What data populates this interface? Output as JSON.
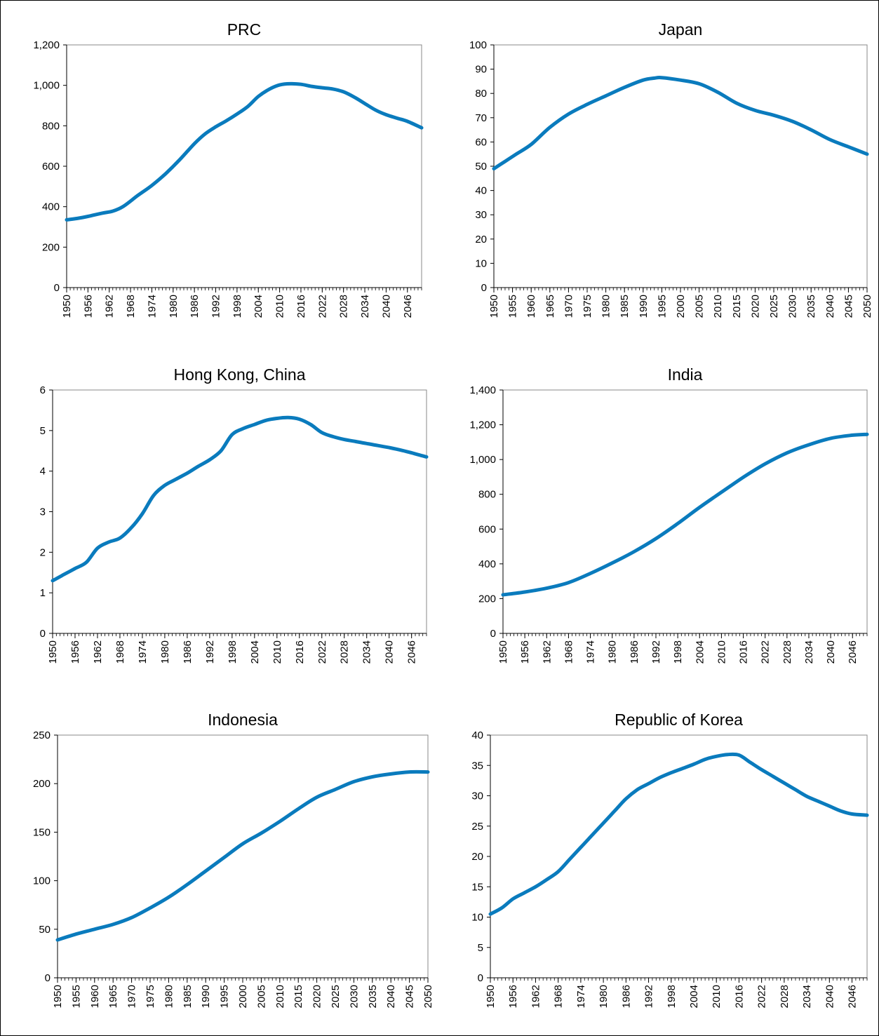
{
  "chart_data": [
    {
      "type": "line",
      "title": "PRC",
      "ylim": [
        0,
        1200
      ],
      "yticks": [
        0,
        200,
        400,
        600,
        800,
        "1,000",
        "1,200"
      ],
      "xlim": [
        1950,
        2050
      ],
      "xtick_values": [
        1950,
        1956,
        1962,
        1968,
        1974,
        1980,
        1986,
        1992,
        1998,
        2004,
        2010,
        2016,
        2022,
        2028,
        2034,
        2040,
        2046
      ],
      "xtick_labels": [
        "1950",
        "1956",
        "1962",
        "1968",
        "1974",
        "1980",
        "1986",
        "1992",
        "1998",
        "2004",
        "2010",
        "2016",
        "2022",
        "2028",
        "2034",
        "2040",
        "2046"
      ],
      "color": "#0a7bbd",
      "series": [
        {
          "x": [
            1950,
            1953,
            1956,
            1960,
            1963,
            1966,
            1970,
            1974,
            1978,
            1982,
            1986,
            1989,
            1992,
            1995,
            1998,
            2001,
            2004,
            2007,
            2010,
            2013,
            2016,
            2019,
            2022,
            2025,
            2028,
            2031,
            2034,
            2037,
            2040,
            2043,
            2046,
            2050
          ],
          "y": [
            335,
            342,
            352,
            368,
            378,
            402,
            455,
            505,
            565,
            635,
            712,
            760,
            795,
            825,
            858,
            895,
            945,
            980,
            1002,
            1008,
            1005,
            995,
            988,
            982,
            968,
            942,
            910,
            878,
            855,
            838,
            822,
            790
          ]
        }
      ]
    },
    {
      "type": "line",
      "title": "Japan",
      "ylim": [
        0,
        100
      ],
      "yticks": [
        0,
        10,
        20,
        30,
        40,
        50,
        60,
        70,
        80,
        90,
        100
      ],
      "xlim": [
        1950,
        2050
      ],
      "xtick_values": [
        1950,
        1955,
        1960,
        1965,
        1970,
        1975,
        1980,
        1985,
        1990,
        1995,
        2000,
        2005,
        2010,
        2015,
        2020,
        2025,
        2030,
        2035,
        2040,
        2045,
        2050
      ],
      "xtick_labels": [
        "1950",
        "1955",
        "1960",
        "1965",
        "1970",
        "1975",
        "1980",
        "1985",
        "1990",
        "1995",
        "2000",
        "2005",
        "2010",
        "2015",
        "2020",
        "2025",
        "2030",
        "2035",
        "2040",
        "2045",
        "2050"
      ],
      "color": "#0a7bbd",
      "series": [
        {
          "x": [
            1950,
            1953,
            1956,
            1960,
            1965,
            1970,
            1975,
            1980,
            1985,
            1990,
            1993,
            1995,
            2000,
            2005,
            2010,
            2015,
            2020,
            2025,
            2030,
            2035,
            2040,
            2045,
            2050
          ],
          "y": [
            49,
            52,
            55,
            59,
            66,
            71.5,
            75.5,
            79,
            82.5,
            85.5,
            86.3,
            86.5,
            85.5,
            84,
            80.5,
            76,
            73,
            71,
            68.5,
            65,
            61,
            58,
            55
          ]
        }
      ]
    },
    {
      "type": "line",
      "title": "Hong Kong, China",
      "ylim": [
        0,
        6
      ],
      "yticks": [
        0,
        1,
        2,
        3,
        4,
        5,
        6
      ],
      "xlim": [
        1950,
        2050
      ],
      "xtick_values": [
        1950,
        1956,
        1962,
        1968,
        1974,
        1980,
        1986,
        1992,
        1998,
        2004,
        2010,
        2016,
        2022,
        2028,
        2034,
        2040,
        2046
      ],
      "xtick_labels": [
        "1950",
        "1956",
        "1962",
        "1968",
        "1974",
        "1980",
        "1986",
        "1992",
        "1998",
        "2004",
        "2010",
        "2016",
        "2022",
        "2028",
        "2034",
        "2040",
        "2046"
      ],
      "color": "#0a7bbd",
      "series": [
        {
          "x": [
            1950,
            1953,
            1956,
            1959,
            1962,
            1965,
            1968,
            1971,
            1974,
            1977,
            1980,
            1983,
            1986,
            1989,
            1992,
            1995,
            1998,
            2001,
            2004,
            2007,
            2010,
            2013,
            2016,
            2019,
            2022,
            2025,
            2028,
            2031,
            2034,
            2037,
            2040,
            2043,
            2046,
            2050
          ],
          "y": [
            1.3,
            1.45,
            1.6,
            1.75,
            2.1,
            2.25,
            2.35,
            2.6,
            2.95,
            3.4,
            3.65,
            3.8,
            3.95,
            4.12,
            4.28,
            4.5,
            4.9,
            5.05,
            5.15,
            5.25,
            5.3,
            5.32,
            5.28,
            5.15,
            4.95,
            4.85,
            4.78,
            4.73,
            4.68,
            4.63,
            4.58,
            4.52,
            4.45,
            4.35
          ]
        }
      ]
    },
    {
      "type": "line",
      "title": "India",
      "ylim": [
        0,
        1400
      ],
      "yticks": [
        0,
        200,
        400,
        600,
        800,
        "1,000",
        "1,200",
        "1,400"
      ],
      "xlim": [
        1950,
        2050
      ],
      "xtick_values": [
        1950,
        1956,
        1962,
        1968,
        1974,
        1980,
        1986,
        1992,
        1998,
        2004,
        2010,
        2016,
        2022,
        2028,
        2034,
        2040,
        2046
      ],
      "xtick_labels": [
        "1950",
        "1956",
        "1962",
        "1968",
        "1974",
        "1980",
        "1986",
        "1992",
        "1998",
        "2004",
        "2010",
        "2016",
        "2022",
        "2028",
        "2034",
        "2040",
        "2046"
      ],
      "color": "#0a7bbd",
      "series": [
        {
          "x": [
            1950,
            1956,
            1962,
            1968,
            1974,
            1980,
            1986,
            1992,
            1998,
            2004,
            2010,
            2016,
            2022,
            2028,
            2034,
            2040,
            2046,
            2050
          ],
          "y": [
            222,
            238,
            260,
            292,
            345,
            405,
            470,
            545,
            632,
            725,
            812,
            898,
            975,
            1038,
            1085,
            1122,
            1140,
            1145
          ]
        }
      ]
    },
    {
      "type": "line",
      "title": "Indonesia",
      "ylim": [
        0,
        250
      ],
      "yticks": [
        0,
        50,
        100,
        150,
        200,
        250
      ],
      "xlim": [
        1950,
        2050
      ],
      "xtick_values": [
        1950,
        1955,
        1960,
        1965,
        1970,
        1975,
        1980,
        1985,
        1990,
        1995,
        2000,
        2005,
        2010,
        2015,
        2020,
        2025,
        2030,
        2035,
        2040,
        2045,
        2050
      ],
      "xtick_labels": [
        "1950",
        "1955",
        "1960",
        "1965",
        "1970",
        "1975",
        "1980",
        "1985",
        "1990",
        "1995",
        "2000",
        "2005",
        "2010",
        "2015",
        "2020",
        "2025",
        "2030",
        "2035",
        "2040",
        "2045",
        "2050"
      ],
      "color": "#0a7bbd",
      "series": [
        {
          "x": [
            1950,
            1955,
            1960,
            1965,
            1970,
            1975,
            1980,
            1985,
            1990,
            1995,
            2000,
            2005,
            2010,
            2015,
            2020,
            2025,
            2030,
            2035,
            2040,
            2045,
            2050
          ],
          "y": [
            39,
            45,
            50,
            55,
            62,
            72,
            83,
            96,
            110,
            124,
            138,
            149,
            161,
            174,
            186,
            194,
            202,
            207,
            210,
            212,
            212
          ]
        }
      ]
    },
    {
      "type": "line",
      "title": "Republic of Korea",
      "ylim": [
        0,
        40
      ],
      "yticks": [
        0,
        5,
        10,
        15,
        20,
        25,
        30,
        35,
        40
      ],
      "xlim": [
        1950,
        2050
      ],
      "xtick_values": [
        1950,
        1956,
        1962,
        1968,
        1974,
        1980,
        1986,
        1992,
        1998,
        2004,
        2010,
        2016,
        2022,
        2028,
        2034,
        2040,
        2046
      ],
      "xtick_labels": [
        "1950",
        "1956",
        "1962",
        "1968",
        "1974",
        "1980",
        "1986",
        "1992",
        "1998",
        "2004",
        "2010",
        "2016",
        "2022",
        "2028",
        "2034",
        "2040",
        "2046"
      ],
      "color": "#0a7bbd",
      "series": [
        {
          "x": [
            1950,
            1953,
            1956,
            1959,
            1962,
            1965,
            1968,
            1971,
            1974,
            1977,
            1980,
            1983,
            1986,
            1989,
            1992,
            1995,
            1998,
            2001,
            2004,
            2007,
            2010,
            2013,
            2016,
            2019,
            2022,
            2025,
            2028,
            2031,
            2034,
            2037,
            2040,
            2043,
            2046,
            2050
          ],
          "y": [
            10.5,
            11.5,
            13,
            14,
            15,
            16.2,
            17.5,
            19.5,
            21.5,
            23.5,
            25.5,
            27.5,
            29.5,
            31,
            32,
            33,
            33.8,
            34.5,
            35.2,
            36,
            36.5,
            36.8,
            36.7,
            35.5,
            34.3,
            33.2,
            32.1,
            31,
            29.9,
            29.1,
            28.3,
            27.5,
            27,
            26.8
          ]
        }
      ]
    }
  ]
}
